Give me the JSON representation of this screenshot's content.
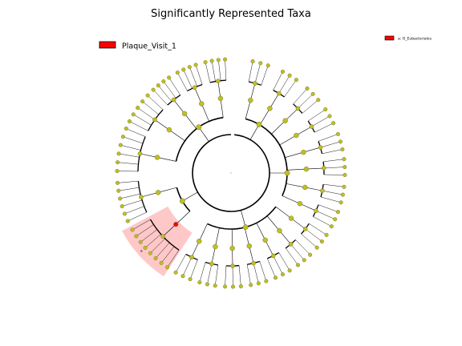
{
  "figure": {
    "title": "Significantly Represented Taxa",
    "legend_left": {
      "label": "Plaque_Visit_1",
      "color": "#ff0000"
    },
    "legend_right": {
      "label": "a: O_Eubacteriales",
      "color": "#ff0000"
    },
    "highlight_label": "a",
    "highlight_color": "#ffc8c8",
    "node_color": "#bfbf20",
    "marker_color": "#ff0000"
  }
}
